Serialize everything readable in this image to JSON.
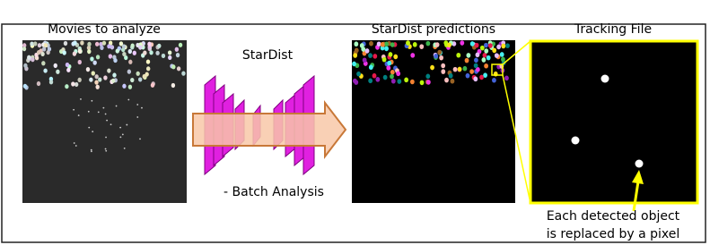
{
  "panels": {
    "movies": {
      "label": "Movies to analyze"
    },
    "network": {
      "label": "StarDist",
      "caption": "- Batch Analysis"
    },
    "predictions": {
      "label": "StarDist predictions"
    },
    "tracking": {
      "label": "Tracking File",
      "caption": [
        "Each detected object",
        "is replaced by a pixel"
      ]
    }
  }
}
